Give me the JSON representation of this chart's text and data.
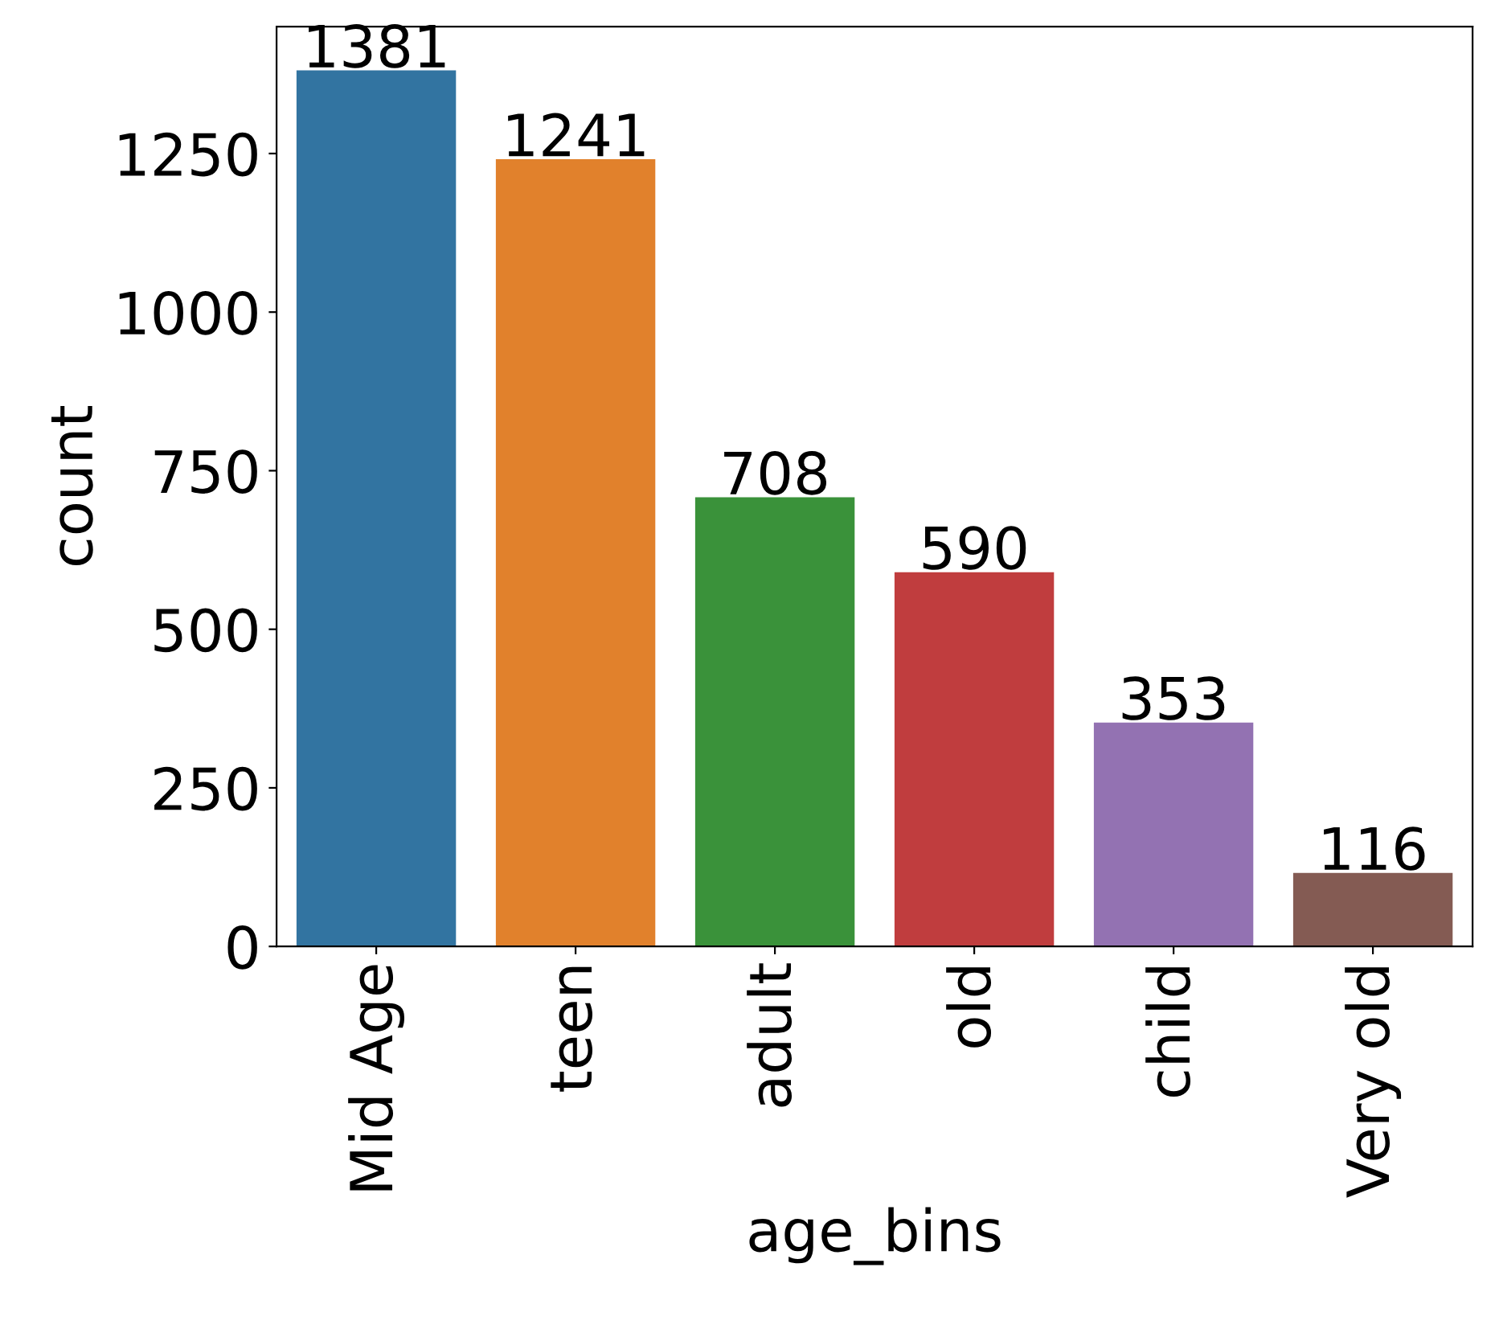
{
  "chart_data": {
    "type": "bar",
    "xlabel": "age_bins",
    "ylabel": "count",
    "categories": [
      "Mid Age",
      "teen",
      "adult",
      "old",
      "child",
      "Very old"
    ],
    "values": [
      1381,
      1241,
      708,
      590,
      353,
      116
    ],
    "colors": [
      "#3274a1",
      "#e1812c",
      "#3a923a",
      "#c03d3e",
      "#9372b2",
      "#845b53"
    ],
    "ylim": [
      0,
      1450
    ],
    "yticks": [
      0,
      250,
      500,
      750,
      1000,
      1250
    ],
    "data_labels": true,
    "grid": false,
    "legend": false
  }
}
